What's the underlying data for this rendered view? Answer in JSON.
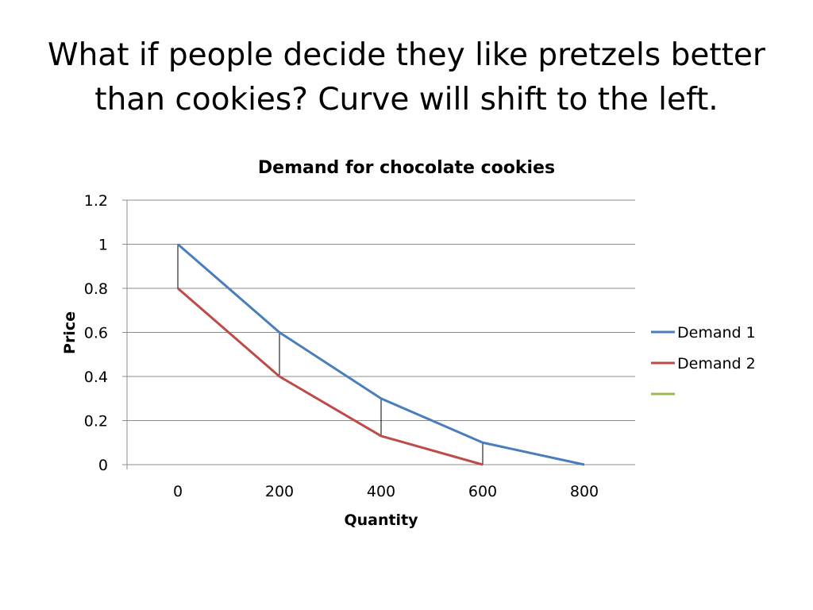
{
  "slide": {
    "title_line1": "What if people decide they like pretzels better",
    "title_line2": "than cookies?  Curve will shift to the left."
  },
  "chart_data": {
    "type": "line",
    "title": "Demand for chocolate cookies",
    "xlabel": "Quantity",
    "ylabel": "Price",
    "categories": [
      "0",
      "200",
      "400",
      "600",
      "800"
    ],
    "y_ticks": [
      "0",
      "0.2",
      "0.4",
      "0.6",
      "0.8",
      "1",
      "1.2"
    ],
    "ylim": [
      0,
      1.2
    ],
    "grid": "horizontal",
    "legend_position": "right",
    "series": [
      {
        "name": "Demand 1",
        "color": "#4a7ebb",
        "x": [
          0,
          200,
          400,
          600,
          800
        ],
        "y": [
          1.0,
          0.6,
          0.3,
          0.1,
          0.0
        ]
      },
      {
        "name": "Demand 2",
        "color": "#be4b48",
        "x": [
          0,
          200,
          400,
          600
        ],
        "y": [
          0.8,
          0.4,
          0.13,
          0.0
        ]
      },
      {
        "name": "",
        "color": "#98b954",
        "x": [],
        "y": []
      }
    ],
    "annotations": {
      "type": "vertical connector lines between curves",
      "color": "#000000",
      "segments": [
        {
          "x": 0,
          "y_from": 0.8,
          "y_to": 1.0
        },
        {
          "x": 200,
          "y_from": 0.4,
          "y_to": 0.6
        },
        {
          "x": 400,
          "y_from": 0.13,
          "y_to": 0.3
        },
        {
          "x": 600,
          "y_from": 0.0,
          "y_to": 0.1
        }
      ]
    }
  }
}
